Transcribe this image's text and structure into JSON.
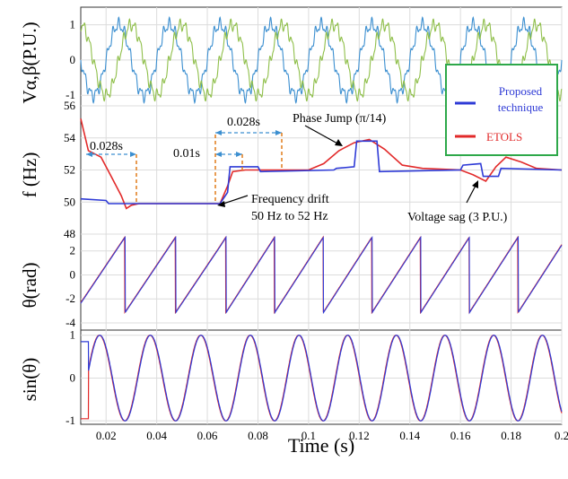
{
  "chart_data": [
    {
      "type": "line",
      "ylabel": "Vα,β(P.U.)",
      "ylim": [
        -1.3,
        1.5
      ],
      "yticks": [
        "1",
        "0",
        "-1"
      ],
      "signals": {
        "frequency_hz": 50,
        "amplitude": 1,
        "harmonic_ripple": 0.2
      },
      "series": [
        {
          "color": "#3c8fd0"
        },
        {
          "color": "#8fbf4a"
        }
      ]
    },
    {
      "type": "line",
      "ylabel": "f (Hz)",
      "ylim": [
        48,
        56
      ],
      "yticks": [
        "56",
        "54",
        "52",
        "50",
        "48"
      ],
      "legend": {
        "position": "top-right",
        "entries": [
          "Proposed technique",
          "ETOLS"
        ]
      },
      "annotations": {
        "d1": "0.028s",
        "d2": "0.01s",
        "d3": "0.028s",
        "phase_jump": "Phase Jump (π/14)",
        "freq_drift_1": "Frequency drift",
        "freq_drift_2": "50 Hz to 52 Hz",
        "voltage_sag": "Voltage sag (3 P.U.)"
      },
      "series": [
        {
          "name": "Proposed technique",
          "color": "#2f3bd6",
          "points": [
            [
              0.01,
              50.2
            ],
            [
              0.02,
              50.1
            ],
            [
              0.021,
              49.9
            ],
            [
              0.065,
              49.9
            ],
            [
              0.068,
              50.6
            ],
            [
              0.069,
              52.2
            ],
            [
              0.08,
              52.2
            ],
            [
              0.081,
              51.9
            ],
            [
              0.11,
              52.0
            ],
            [
              0.111,
              52.1
            ],
            [
              0.118,
              52.2
            ],
            [
              0.119,
              53.8
            ],
            [
              0.127,
              53.8
            ],
            [
              0.128,
              51.9
            ],
            [
              0.16,
              52.0
            ],
            [
              0.161,
              52.3
            ],
            [
              0.168,
              52.4
            ],
            [
              0.169,
              51.6
            ],
            [
              0.175,
              51.6
            ],
            [
              0.176,
              52.1
            ],
            [
              0.2,
              52.0
            ]
          ]
        },
        {
          "name": "ETOLS",
          "color": "#e22a2a",
          "points": [
            [
              0.01,
              55.2
            ],
            [
              0.013,
              53.2
            ],
            [
              0.018,
              52.8
            ],
            [
              0.022,
              51.6
            ],
            [
              0.026,
              50.4
            ],
            [
              0.028,
              49.6
            ],
            [
              0.03,
              49.8
            ],
            [
              0.033,
              49.9
            ],
            [
              0.065,
              49.9
            ],
            [
              0.068,
              51.0
            ],
            [
              0.07,
              51.9
            ],
            [
              0.075,
              52.0
            ],
            [
              0.1,
              52.0
            ],
            [
              0.106,
              52.4
            ],
            [
              0.112,
              53.2
            ],
            [
              0.118,
              53.7
            ],
            [
              0.124,
              53.9
            ],
            [
              0.13,
              53.3
            ],
            [
              0.137,
              52.3
            ],
            [
              0.145,
              52.1
            ],
            [
              0.16,
              52.0
            ],
            [
              0.165,
              51.7
            ],
            [
              0.17,
              51.3
            ],
            [
              0.174,
              52.2
            ],
            [
              0.178,
              52.8
            ],
            [
              0.184,
              52.5
            ],
            [
              0.19,
              52.1
            ],
            [
              0.2,
              52.0
            ]
          ]
        }
      ]
    },
    {
      "type": "line",
      "ylabel": "θ(rad)",
      "ylim": [
        -4.6,
        3.4
      ],
      "yticks": [
        "2",
        "0",
        "-2",
        "-4"
      ],
      "series": [
        {
          "name": "Proposed technique",
          "color": "#2f3bd6"
        },
        {
          "name": "ETOLS",
          "color": "#e22a2a"
        }
      ]
    },
    {
      "type": "line",
      "ylabel": "sin(θ)",
      "ylim": [
        -1.08,
        1.12
      ],
      "yticks": [
        "1",
        "0",
        "-1"
      ],
      "series": [
        {
          "name": "Proposed technique",
          "color": "#2f3bd6"
        },
        {
          "name": "ETOLS",
          "color": "#e22a2a"
        }
      ]
    }
  ],
  "xaxis": {
    "label": "Time (s)",
    "xlim": [
      0.01,
      0.2
    ],
    "ticks": [
      "0.02",
      "0.04",
      "0.06",
      "0.08",
      "0.1",
      "0.12",
      "0.14",
      "0.16",
      "0.18",
      "0.2"
    ]
  }
}
